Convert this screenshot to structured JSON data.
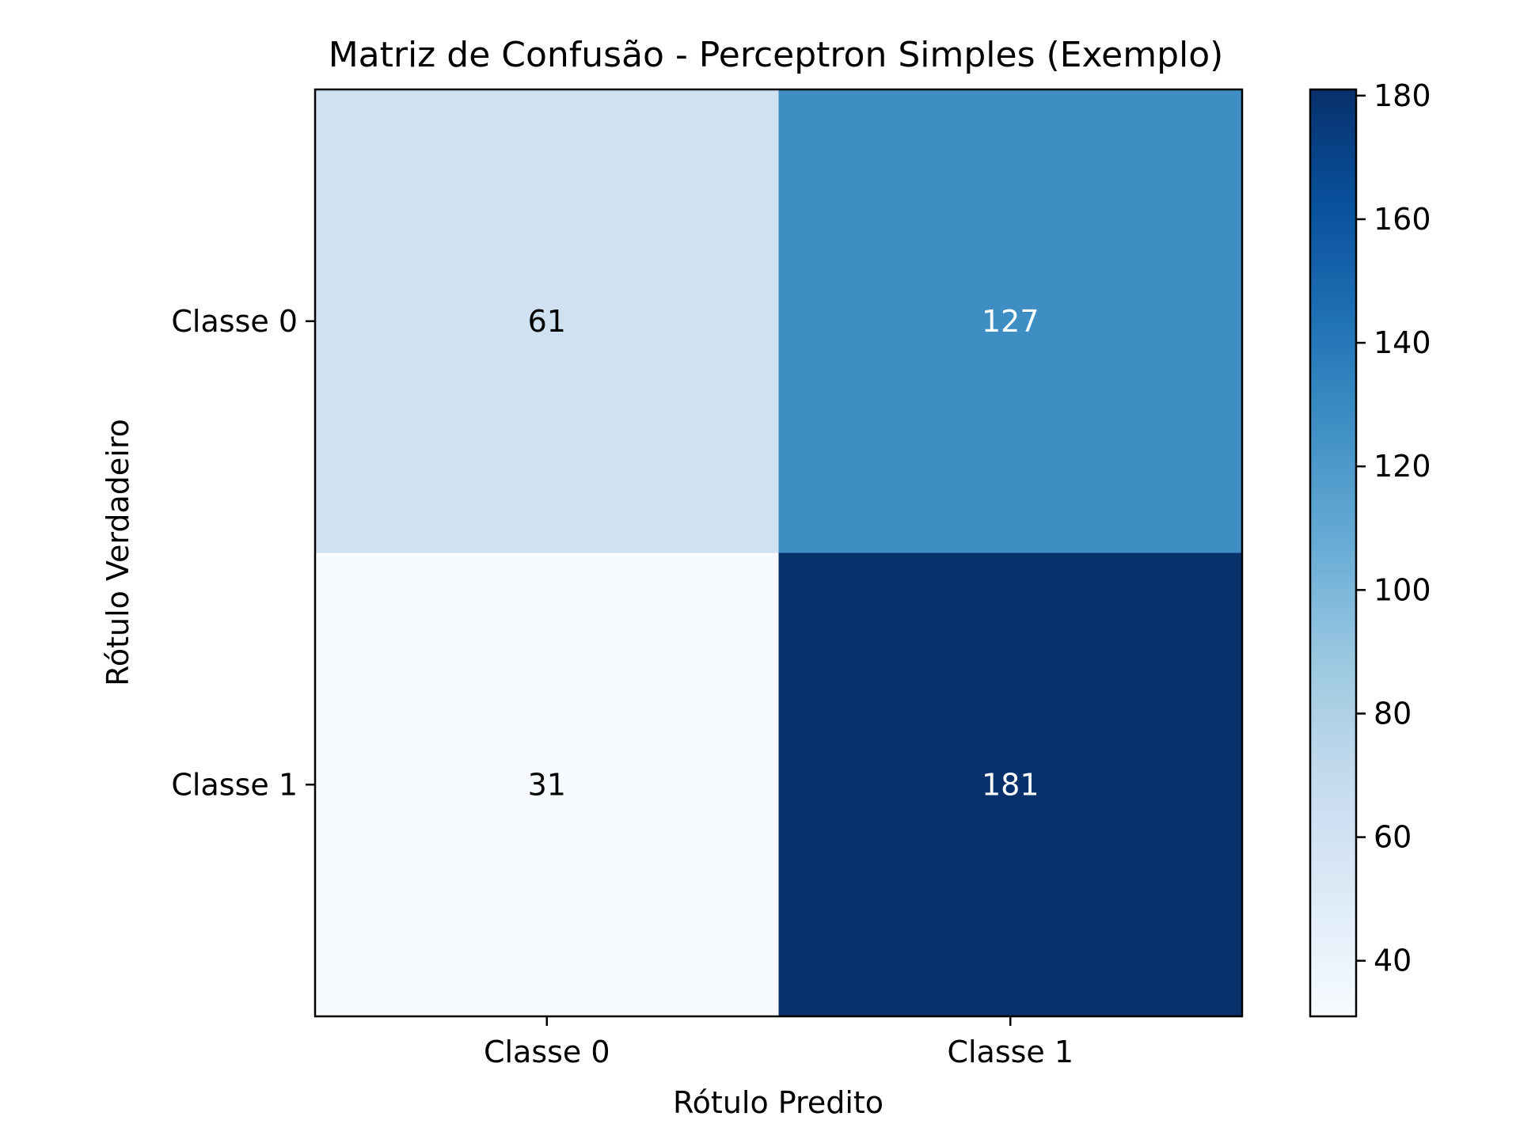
{
  "chart_data": {
    "type": "heatmap",
    "title": "Matriz de Confusão - Perceptron Simples (Exemplo)",
    "xlabel": "Rótulo Predito",
    "ylabel": "Rótulo Verdadeiro",
    "x_categories": [
      "Classe 0",
      "Classe 1"
    ],
    "y_categories": [
      "Classe 0",
      "Classe 1"
    ],
    "values": [
      [
        61,
        127
      ],
      [
        31,
        181
      ]
    ],
    "colormap": "Blues",
    "colorbar": {
      "range": [
        31,
        181
      ],
      "ticks": [
        40,
        60,
        80,
        100,
        120,
        140,
        160,
        180
      ]
    },
    "colors": {
      "text_light": "#ffffff",
      "text_dark": "#000000",
      "axis": "#000000"
    }
  }
}
